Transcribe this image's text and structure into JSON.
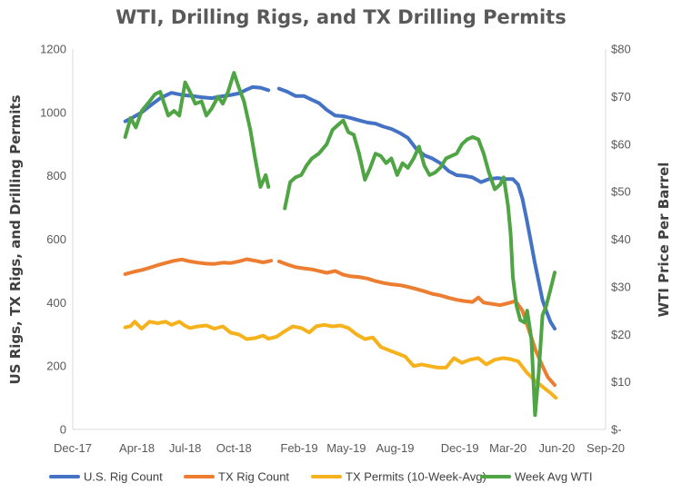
{
  "chart_data": {
    "type": "line",
    "title": "WTI, Drilling Rigs, and TX Drilling Permits",
    "ylabel": "US Rigs, TX Rigs, and Drilling Permits",
    "y2label": "WTI Price Per Barrel",
    "ylim": [
      0,
      1200
    ],
    "y2lim": [
      0,
      80
    ],
    "y_ticks": [
      0,
      200,
      400,
      600,
      800,
      1000,
      1200
    ],
    "y_tick_labels": [
      "0",
      "200",
      "400",
      "600",
      "800",
      "1000",
      "1200"
    ],
    "y2_ticks": [
      0,
      10,
      20,
      30,
      40,
      50,
      60,
      70,
      80
    ],
    "y2_tick_labels": [
      "$-",
      "$10",
      "$20",
      "$30",
      "$40",
      "$50",
      "$60",
      "$70",
      "$80"
    ],
    "x_ticks": [
      "2017-12",
      "2018-04",
      "2018-07",
      "2018-10",
      "2019-02",
      "2019-05",
      "2019-08",
      "2019-12",
      "2020-03",
      "2020-06",
      "2020-09"
    ],
    "x_tick_labels": [
      "Dec-17",
      "Apr-18",
      "Jul-18",
      "Oct-18",
      "Feb-19",
      "May-19",
      "Aug-19",
      "Dec-19",
      "Mar-20",
      "Jun-20",
      "Sep-20"
    ],
    "grid": false,
    "legend_position": "bottom",
    "series": [
      {
        "name": "U.S. Rig Count",
        "axis": "left",
        "color": "#4472c4",
        "points": [
          [
            "2018-03-10",
            972
          ],
          [
            "2018-03-25",
            985
          ],
          [
            "2018-04-10",
            1000
          ],
          [
            "2018-04-25",
            1020
          ],
          [
            "2018-05-15",
            1045
          ],
          [
            "2018-06-05",
            1062
          ],
          [
            "2018-06-25",
            1055
          ],
          [
            "2018-07-15",
            1052
          ],
          [
            "2018-08-01",
            1048
          ],
          [
            "2018-08-20",
            1045
          ],
          [
            "2018-09-05",
            1050
          ],
          [
            "2018-09-25",
            1055
          ],
          [
            "2018-10-10",
            1060
          ],
          [
            "2018-10-25",
            1072
          ],
          [
            "2018-11-05",
            1080
          ],
          [
            "2018-11-20",
            1078
          ],
          [
            "2018-12-05",
            1070
          ],
          null,
          [
            "2018-12-25",
            1075
          ],
          [
            "2019-01-10",
            1065
          ],
          [
            "2019-01-25",
            1052
          ],
          [
            "2019-02-10",
            1052
          ],
          [
            "2019-02-25",
            1040
          ],
          [
            "2019-03-10",
            1030
          ],
          [
            "2019-03-25",
            1008
          ],
          [
            "2019-04-10",
            990
          ],
          [
            "2019-04-25",
            988
          ],
          [
            "2019-05-10",
            982
          ],
          [
            "2019-05-25",
            975
          ],
          [
            "2019-06-10",
            968
          ],
          [
            "2019-06-25",
            965
          ],
          [
            "2019-07-10",
            955
          ],
          [
            "2019-07-25",
            948
          ],
          [
            "2019-08-10",
            935
          ],
          [
            "2019-08-25",
            920
          ],
          [
            "2019-09-10",
            885
          ],
          [
            "2019-09-25",
            865
          ],
          [
            "2019-10-10",
            855
          ],
          [
            "2019-10-25",
            840
          ],
          [
            "2019-11-10",
            815
          ],
          [
            "2019-11-25",
            802
          ],
          [
            "2019-12-10",
            800
          ],
          [
            "2019-12-25",
            795
          ],
          [
            "2020-01-10",
            780
          ],
          [
            "2020-01-25",
            790
          ],
          [
            "2020-02-10",
            793
          ],
          [
            "2020-02-25",
            790
          ],
          [
            "2020-03-10",
            790
          ],
          [
            "2020-03-20",
            772
          ],
          [
            "2020-03-28",
            728
          ],
          [
            "2020-04-05",
            664
          ],
          [
            "2020-04-12",
            602
          ],
          [
            "2020-04-20",
            529
          ],
          [
            "2020-04-28",
            465
          ],
          [
            "2020-05-05",
            408
          ],
          [
            "2020-05-12",
            374
          ],
          [
            "2020-05-20",
            339
          ],
          [
            "2020-05-28",
            318
          ]
        ]
      },
      {
        "name": "TX Rig Count",
        "axis": "left",
        "color": "#ed7d31",
        "points": [
          [
            "2018-03-10",
            490
          ],
          [
            "2018-03-25",
            497
          ],
          [
            "2018-04-10",
            503
          ],
          [
            "2018-04-25",
            510
          ],
          [
            "2018-05-10",
            518
          ],
          [
            "2018-05-25",
            525
          ],
          [
            "2018-06-10",
            532
          ],
          [
            "2018-06-25",
            536
          ],
          [
            "2018-07-10",
            530
          ],
          [
            "2018-07-25",
            526
          ],
          [
            "2018-08-10",
            523
          ],
          [
            "2018-08-25",
            522
          ],
          [
            "2018-09-10",
            526
          ],
          [
            "2018-09-25",
            525
          ],
          [
            "2018-10-10",
            530
          ],
          [
            "2018-10-25",
            537
          ],
          [
            "2018-11-10",
            532
          ],
          [
            "2018-11-25",
            527
          ],
          [
            "2018-12-10",
            532
          ],
          null,
          [
            "2018-12-25",
            530
          ],
          [
            "2019-01-10",
            520
          ],
          [
            "2019-01-25",
            512
          ],
          [
            "2019-02-10",
            508
          ],
          [
            "2019-02-25",
            505
          ],
          [
            "2019-03-10",
            500
          ],
          [
            "2019-03-25",
            494
          ],
          [
            "2019-04-10",
            500
          ],
          [
            "2019-04-25",
            488
          ],
          [
            "2019-05-10",
            483
          ],
          [
            "2019-05-25",
            481
          ],
          [
            "2019-06-10",
            476
          ],
          [
            "2019-06-25",
            468
          ],
          [
            "2019-07-10",
            462
          ],
          [
            "2019-07-25",
            458
          ],
          [
            "2019-08-10",
            455
          ],
          [
            "2019-08-25",
            450
          ],
          [
            "2019-09-10",
            443
          ],
          [
            "2019-09-25",
            436
          ],
          [
            "2019-10-10",
            428
          ],
          [
            "2019-10-25",
            423
          ],
          [
            "2019-11-10",
            415
          ],
          [
            "2019-11-25",
            409
          ],
          [
            "2019-12-10",
            405
          ],
          [
            "2019-12-25",
            402
          ],
          [
            "2020-01-05",
            416
          ],
          [
            "2020-01-15",
            400
          ],
          [
            "2020-01-30",
            396
          ],
          [
            "2020-02-15",
            392
          ],
          [
            "2020-03-01",
            398
          ],
          [
            "2020-03-15",
            405
          ],
          [
            "2020-03-28",
            375
          ],
          [
            "2020-04-10",
            310
          ],
          [
            "2020-04-22",
            250
          ],
          [
            "2020-05-05",
            200
          ],
          [
            "2020-05-15",
            165
          ],
          [
            "2020-05-28",
            140
          ]
        ]
      },
      {
        "name": "TX Permits (10-Week-Avg)",
        "axis": "left",
        "color": "#f5b21c",
        "points": [
          [
            "2018-03-10",
            322
          ],
          [
            "2018-03-20",
            326
          ],
          [
            "2018-03-28",
            340
          ],
          [
            "2018-04-10",
            318
          ],
          [
            "2018-04-25",
            340
          ],
          [
            "2018-05-10",
            335
          ],
          [
            "2018-05-25",
            340
          ],
          [
            "2018-06-05",
            330
          ],
          [
            "2018-06-20",
            340
          ],
          [
            "2018-06-30",
            328
          ],
          [
            "2018-07-10",
            320
          ],
          [
            "2018-07-25",
            325
          ],
          [
            "2018-08-10",
            328
          ],
          [
            "2018-08-25",
            318
          ],
          [
            "2018-09-10",
            325
          ],
          [
            "2018-09-25",
            305
          ],
          [
            "2018-10-10",
            300
          ],
          [
            "2018-10-25",
            285
          ],
          [
            "2018-11-10",
            288
          ],
          [
            "2018-11-25",
            296
          ],
          [
            "2018-12-05",
            286
          ],
          [
            "2018-12-20",
            292
          ],
          [
            "2019-01-05",
            310
          ],
          [
            "2019-01-20",
            325
          ],
          [
            "2019-02-05",
            320
          ],
          [
            "2019-02-20",
            306
          ],
          [
            "2019-03-05",
            325
          ],
          [
            "2019-03-20",
            330
          ],
          [
            "2019-04-05",
            325
          ],
          [
            "2019-04-20",
            328
          ],
          [
            "2019-05-05",
            320
          ],
          [
            "2019-05-20",
            300
          ],
          [
            "2019-06-05",
            285
          ],
          [
            "2019-06-20",
            290
          ],
          [
            "2019-07-05",
            260
          ],
          [
            "2019-07-20",
            250
          ],
          [
            "2019-08-05",
            240
          ],
          [
            "2019-08-20",
            230
          ],
          [
            "2019-09-05",
            200
          ],
          [
            "2019-09-20",
            205
          ],
          [
            "2019-10-05",
            200
          ],
          [
            "2019-10-20",
            195
          ],
          [
            "2019-11-05",
            195
          ],
          [
            "2019-11-20",
            225
          ],
          [
            "2019-12-05",
            210
          ],
          [
            "2019-12-20",
            220
          ],
          [
            "2020-01-05",
            225
          ],
          [
            "2020-01-20",
            205
          ],
          [
            "2020-02-05",
            220
          ],
          [
            "2020-02-20",
            225
          ],
          [
            "2020-03-05",
            222
          ],
          [
            "2020-03-20",
            215
          ],
          [
            "2020-04-05",
            180
          ],
          [
            "2020-04-20",
            155
          ],
          [
            "2020-05-05",
            135
          ],
          [
            "2020-05-20",
            115
          ],
          [
            "2020-05-30",
            100
          ]
        ]
      },
      {
        "name": "Week Avg WTI",
        "axis": "right",
        "color": "#4fa444",
        "points": [
          [
            "2018-03-10",
            61.5
          ],
          [
            "2018-03-20",
            65.5
          ],
          [
            "2018-03-30",
            63.5
          ],
          [
            "2018-04-10",
            67.0
          ],
          [
            "2018-04-25",
            69.0
          ],
          [
            "2018-05-05",
            70.5
          ],
          [
            "2018-05-15",
            71.0
          ],
          [
            "2018-05-30",
            66.0
          ],
          [
            "2018-06-10",
            67.0
          ],
          [
            "2018-06-20",
            66.0
          ],
          [
            "2018-07-01",
            73.0
          ],
          [
            "2018-07-10",
            71.0
          ],
          [
            "2018-07-20",
            68.5
          ],
          [
            "2018-08-01",
            69.0
          ],
          [
            "2018-08-10",
            66.0
          ],
          [
            "2018-08-20",
            67.5
          ],
          [
            "2018-09-01",
            70.0
          ],
          [
            "2018-09-10",
            68.5
          ],
          [
            "2018-09-20",
            71.0
          ],
          [
            "2018-10-01",
            75.0
          ],
          [
            "2018-10-10",
            72.0
          ],
          [
            "2018-10-20",
            69.0
          ],
          [
            "2018-11-01",
            63.0
          ],
          [
            "2018-11-10",
            57.0
          ],
          [
            "2018-11-20",
            51.0
          ],
          [
            "2018-11-30",
            53.5
          ],
          [
            "2018-12-05",
            51.0
          ],
          null,
          [
            "2019-01-05",
            46.5
          ],
          [
            "2019-01-15",
            52.0
          ],
          [
            "2019-01-25",
            53.0
          ],
          [
            "2019-02-05",
            53.5
          ],
          [
            "2019-02-15",
            55.5
          ],
          [
            "2019-02-25",
            57.0
          ],
          [
            "2019-03-10",
            58.0
          ],
          [
            "2019-03-25",
            60.0
          ],
          [
            "2019-04-05",
            63.0
          ],
          [
            "2019-04-15",
            64.0
          ],
          [
            "2019-04-25",
            65.0
          ],
          [
            "2019-05-05",
            62.5
          ],
          [
            "2019-05-15",
            62.0
          ],
          [
            "2019-05-25",
            58.0
          ],
          [
            "2019-06-05",
            52.5
          ],
          [
            "2019-06-15",
            55.0
          ],
          [
            "2019-06-25",
            58.0
          ],
          [
            "2019-07-05",
            57.5
          ],
          [
            "2019-07-15",
            56.0
          ],
          [
            "2019-07-25",
            57.0
          ],
          [
            "2019-08-05",
            53.5
          ],
          [
            "2019-08-15",
            56.0
          ],
          [
            "2019-08-25",
            55.0
          ],
          [
            "2019-09-05",
            57.0
          ],
          [
            "2019-09-15",
            59.5
          ],
          [
            "2019-09-25",
            55.5
          ],
          [
            "2019-10-05",
            53.5
          ],
          [
            "2019-10-15",
            54.0
          ],
          [
            "2019-10-25",
            55.0
          ],
          [
            "2019-11-05",
            57.0
          ],
          [
            "2019-11-15",
            57.5
          ],
          [
            "2019-11-25",
            58.0
          ],
          [
            "2019-12-05",
            60.0
          ],
          [
            "2019-12-15",
            61.0
          ],
          [
            "2019-12-25",
            61.5
          ],
          [
            "2020-01-05",
            61.0
          ],
          [
            "2020-01-15",
            58.0
          ],
          [
            "2020-01-25",
            54.0
          ],
          [
            "2020-02-05",
            50.5
          ],
          [
            "2020-02-15",
            51.5
          ],
          [
            "2020-02-22",
            53.0
          ],
          [
            "2020-03-01",
            47.0
          ],
          [
            "2020-03-06",
            41.0
          ],
          [
            "2020-03-10",
            32.0
          ],
          [
            "2020-03-17",
            26.0
          ],
          [
            "2020-03-24",
            23.0
          ],
          [
            "2020-04-01",
            22.5
          ],
          [
            "2020-04-06",
            25.0
          ],
          [
            "2020-04-14",
            19.0
          ],
          [
            "2020-04-21",
            3.0
          ],
          [
            "2020-04-28",
            12.0
          ],
          [
            "2020-05-05",
            24.0
          ],
          [
            "2020-05-12",
            26.0
          ],
          [
            "2020-05-19",
            29.0
          ],
          [
            "2020-05-28",
            33.0
          ]
        ]
      }
    ]
  }
}
